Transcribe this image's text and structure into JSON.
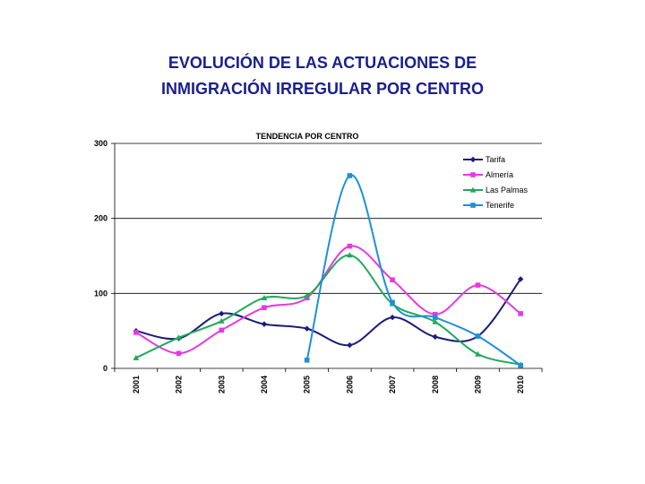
{
  "slide": {
    "title_line1": "EVOLUCIÓN DE LAS ACTUACIONES DE",
    "title_line2": "INMIGRACIÓN IRREGULAR POR CENTRO"
  },
  "chart_data": {
    "type": "line",
    "title": "TENDENCIA POR CENTRO",
    "xlabel": "",
    "ylabel": "",
    "categories": [
      "2001",
      "2002",
      "2003",
      "2004",
      "2005",
      "2006",
      "2007",
      "2008",
      "2009",
      "2010"
    ],
    "ylim": [
      0,
      300
    ],
    "yticks": [
      0,
      100,
      200,
      300
    ],
    "grid": true,
    "legend_position": "top-right",
    "smooth": true,
    "series": [
      {
        "name": "Tarifa",
        "color": "#1c1c7a",
        "marker": "diamond",
        "values": [
          50,
          40,
          73,
          59,
          53,
          31,
          68,
          42,
          43,
          119
        ]
      },
      {
        "name": "Almería",
        "color": "#e43ae0",
        "marker": "square",
        "values": [
          48,
          20,
          51,
          81,
          94,
          163,
          118,
          72,
          111,
          73
        ]
      },
      {
        "name": "Las Palmas",
        "color": "#1eaa5a",
        "marker": "triangle",
        "values": [
          14,
          41,
          63,
          94,
          97,
          151,
          86,
          62,
          19,
          5
        ]
      },
      {
        "name": "Tenerife",
        "color": "#1f8fd8",
        "marker": "square",
        "values": [
          null,
          null,
          null,
          null,
          11,
          257,
          88,
          68,
          43,
          4
        ]
      }
    ]
  }
}
